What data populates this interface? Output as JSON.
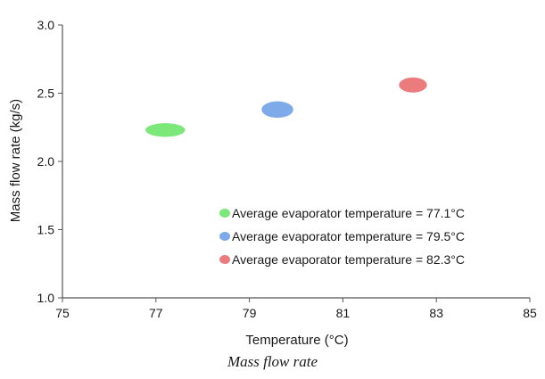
{
  "chart_data": {
    "type": "scatter",
    "xlabel": "Temperature (°C)",
    "ylabel": "Mass flow rate (kg/s)",
    "xlim": [
      75,
      85
    ],
    "ylim": [
      1.0,
      3.0
    ],
    "xticks": [
      75,
      77,
      79,
      81,
      83,
      85
    ],
    "yticks": [
      1.0,
      1.5,
      2.0,
      2.5,
      3.0
    ],
    "grid": false,
    "legend_position": "center-right",
    "series": [
      {
        "name": "Average evaporator temperature = 77.1°C",
        "color": "#7de87a",
        "x": 77.2,
        "y": 2.23,
        "x_spread": 0.85,
        "y_spread": 0.1
      },
      {
        "name": "Average evaporator temperature = 79.5°C",
        "color": "#7eaaea",
        "x": 79.6,
        "y": 2.38,
        "x_spread": 0.68,
        "y_spread": 0.12
      },
      {
        "name": "Average evaporator temperature = 82.3°C",
        "color": "#ec7b7d",
        "x": 82.5,
        "y": 2.56,
        "x_spread": 0.6,
        "y_spread": 0.11
      }
    ]
  },
  "caption": "Mass flow rate"
}
